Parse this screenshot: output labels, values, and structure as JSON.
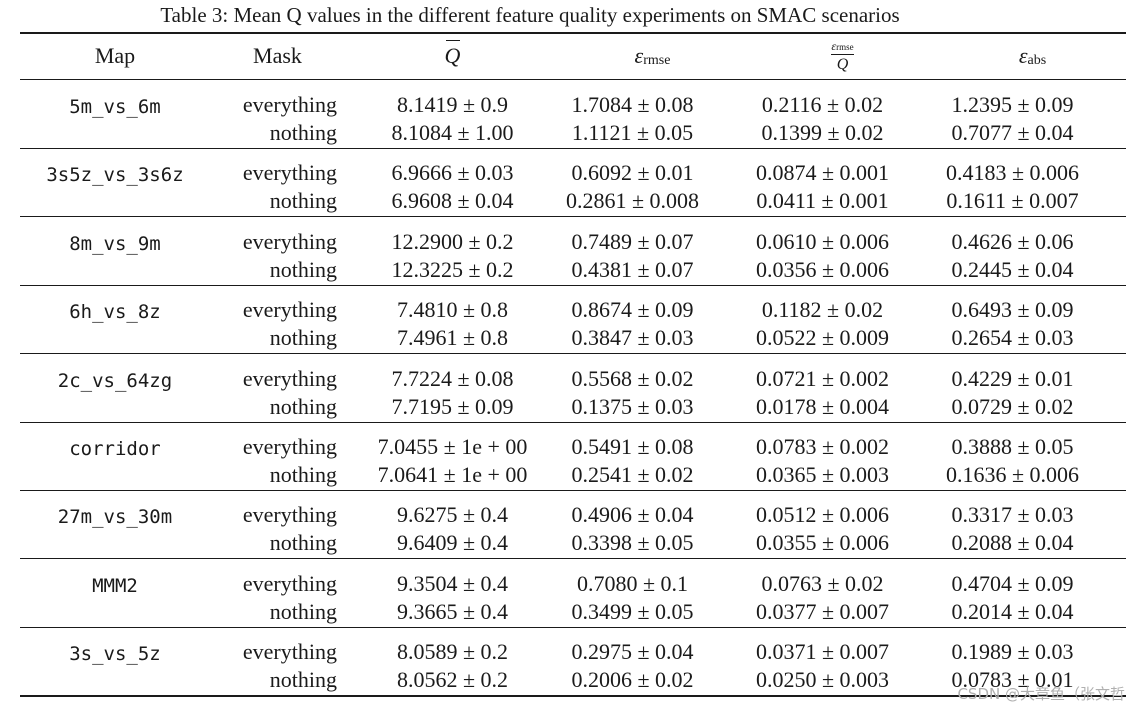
{
  "caption": "Table 3: Mean Q values in the different feature quality experiments on SMAC scenarios",
  "headers": {
    "map": "Map",
    "mask": "Mask",
    "qbar": "Q",
    "eps": "ε",
    "rmse_sub": "rmse",
    "abs_sub": "abs",
    "ratio_den": "Q"
  },
  "rows": [
    {
      "map": "5m_vs_6m",
      "everything": {
        "mask": "everything",
        "q": "8.1419 ± 0.9",
        "rmse": "1.7084 ± 0.08",
        "ratio": "0.2116 ± 0.02",
        "abs": "1.2395 ± 0.09"
      },
      "nothing": {
        "mask": "nothing",
        "q": "8.1084 ± 1.00",
        "rmse": "1.1121 ± 0.05",
        "ratio": "0.1399 ± 0.02",
        "abs": "0.7077 ± 0.04"
      }
    },
    {
      "map": "3s5z_vs_3s6z",
      "everything": {
        "mask": "everything",
        "q": "6.9666 ± 0.03",
        "rmse": "0.6092 ± 0.01",
        "ratio": "0.0874 ± 0.001",
        "abs": "0.4183 ± 0.006"
      },
      "nothing": {
        "mask": "nothing",
        "q": "6.9608 ± 0.04",
        "rmse": "0.2861 ± 0.008",
        "ratio": "0.0411 ± 0.001",
        "abs": "0.1611 ± 0.007"
      }
    },
    {
      "map": "8m_vs_9m",
      "everything": {
        "mask": "everything",
        "q": "12.2900 ± 0.2",
        "rmse": "0.7489 ± 0.07",
        "ratio": "0.0610 ± 0.006",
        "abs": "0.4626 ± 0.06"
      },
      "nothing": {
        "mask": "nothing",
        "q": "12.3225 ± 0.2",
        "rmse": "0.4381 ± 0.07",
        "ratio": "0.0356 ± 0.006",
        "abs": "0.2445 ± 0.04"
      }
    },
    {
      "map": "6h_vs_8z",
      "everything": {
        "mask": "everything",
        "q": "7.4810 ± 0.8",
        "rmse": "0.8674 ± 0.09",
        "ratio": "0.1182 ± 0.02",
        "abs": "0.6493 ± 0.09"
      },
      "nothing": {
        "mask": "nothing",
        "q": "7.4961 ± 0.8",
        "rmse": "0.3847 ± 0.03",
        "ratio": "0.0522 ± 0.009",
        "abs": "0.2654 ± 0.03"
      }
    },
    {
      "map": "2c_vs_64zg",
      "everything": {
        "mask": "everything",
        "q": "7.7224 ± 0.08",
        "rmse": "0.5568 ± 0.02",
        "ratio": "0.0721 ± 0.002",
        "abs": "0.4229 ± 0.01"
      },
      "nothing": {
        "mask": "nothing",
        "q": "7.7195 ± 0.09",
        "rmse": "0.1375 ± 0.03",
        "ratio": "0.0178 ± 0.004",
        "abs": "0.0729 ± 0.02"
      }
    },
    {
      "map": "corridor",
      "everything": {
        "mask": "everything",
        "q": "7.0455 ± 1e + 00",
        "rmse": "0.5491 ± 0.08",
        "ratio": "0.0783 ± 0.002",
        "abs": "0.3888 ± 0.05"
      },
      "nothing": {
        "mask": "nothing",
        "q": "7.0641 ± 1e + 00",
        "rmse": "0.2541 ± 0.02",
        "ratio": "0.0365 ± 0.003",
        "abs": "0.1636 ± 0.006"
      }
    },
    {
      "map": "27m_vs_30m",
      "everything": {
        "mask": "everything",
        "q": "9.6275 ± 0.4",
        "rmse": "0.4906 ± 0.04",
        "ratio": "0.0512 ± 0.006",
        "abs": "0.3317 ± 0.03"
      },
      "nothing": {
        "mask": "nothing",
        "q": "9.6409 ± 0.4",
        "rmse": "0.3398 ± 0.05",
        "ratio": "0.0355 ± 0.006",
        "abs": "0.2088 ± 0.04"
      }
    },
    {
      "map": "MMM2",
      "everything": {
        "mask": "everything",
        "q": "9.3504 ± 0.4",
        "rmse": "0.7080 ± 0.1",
        "ratio": "0.0763 ± 0.02",
        "abs": "0.4704 ± 0.09"
      },
      "nothing": {
        "mask": "nothing",
        "q": "9.3665 ± 0.4",
        "rmse": "0.3499 ± 0.05",
        "ratio": "0.0377 ± 0.007",
        "abs": "0.2014 ± 0.04"
      }
    },
    {
      "map": "3s_vs_5z",
      "everything": {
        "mask": "everything",
        "q": "8.0589 ± 0.2",
        "rmse": "0.2975 ± 0.04",
        "ratio": "0.0371 ± 0.007",
        "abs": "0.1989 ± 0.03"
      },
      "nothing": {
        "mask": "nothing",
        "q": "8.0562 ± 0.2",
        "rmse": "0.2006 ± 0.02",
        "ratio": "0.0250 ± 0.003",
        "abs": "0.0783 ± 0.01"
      }
    }
  ],
  "watermark": "CSDN @大章鱼（张文哲"
}
